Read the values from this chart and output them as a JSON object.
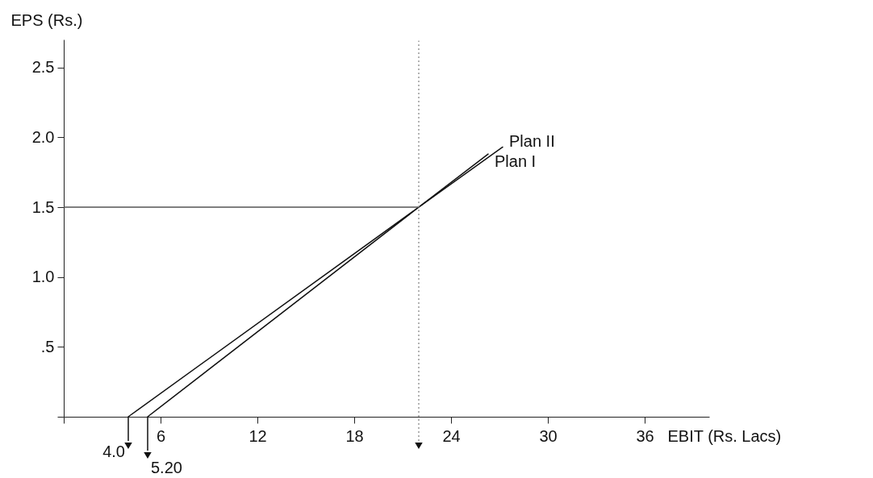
{
  "chart_data": {
    "type": "line",
    "xlabel": "EBIT (Rs. Lacs)",
    "ylabel": "EPS (Rs.)",
    "xlim": [
      0,
      40
    ],
    "ylim": [
      0,
      2.7
    ],
    "xticks": [
      {
        "value": 0,
        "label": null
      },
      6,
      12,
      18,
      24,
      30,
      36
    ],
    "yticks": [
      {
        "value": 0,
        "label": null
      },
      {
        "value": 0.5,
        "label": ".5"
      },
      {
        "value": 1.0,
        "label": "1.0"
      },
      {
        "value": 1.5,
        "label": "1.5"
      },
      {
        "value": 2.0,
        "label": "2.0"
      },
      {
        "value": 2.5,
        "label": "2.5"
      }
    ],
    "series": [
      {
        "name": "Plan II",
        "color": "#111111",
        "x": [
          4.0,
          22,
          27.2
        ],
        "values": [
          0,
          1.5,
          1.93
        ]
      },
      {
        "name": "Plan I",
        "color": "#111111",
        "x": [
          5.2,
          22,
          26.3
        ],
        "values": [
          0,
          1.5,
          1.88
        ]
      }
    ],
    "ref_lines": [
      {
        "axis": "y",
        "value": 1.5,
        "color": "#555555",
        "line_style": "solid"
      },
      {
        "axis": "x",
        "value": 22,
        "color": "#999999",
        "line_style": "dotted"
      }
    ],
    "annotations": [
      {
        "text": "4.0",
        "x": 4.0,
        "y": 0
      },
      {
        "text": "5.20",
        "x": 5.2,
        "y": 0
      }
    ],
    "legend": false,
    "grid": false,
    "marker": "none",
    "line_style": "solid"
  }
}
